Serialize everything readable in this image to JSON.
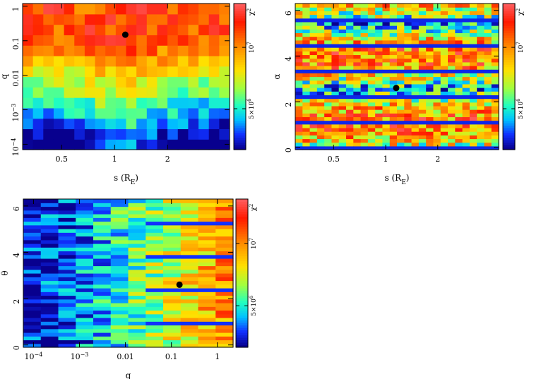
{
  "chart_data": [
    {
      "type": "heatmap",
      "xlabel": "s (R",
      "xlabel_sub": "E",
      "xlabel_close": ")",
      "ylabel": "q",
      "x_scale": "log",
      "y_scale": "log",
      "xlim": [
        0.3,
        4.5
      ],
      "ylim": [
        7e-05,
        1.2
      ],
      "x_ticks": [
        {
          "v": 0.5,
          "label": "0.5"
        },
        {
          "v": 1,
          "label": "1"
        },
        {
          "v": 2,
          "label": "2"
        }
      ],
      "y_ticks": [
        {
          "v": 0.0001,
          "label": "10",
          "sup": "−4"
        },
        {
          "v": 0.001,
          "label": "10",
          "sup": "−3"
        },
        {
          "v": 0.01,
          "label": "0.01"
        },
        {
          "v": 0.1,
          "label": "0.1"
        },
        {
          "v": 1,
          "label": "1"
        }
      ],
      "grid": {
        "cols": 20,
        "rows": 14,
        "pattern": "sq"
      },
      "best_fit": {
        "x": 1.15,
        "y": 0.15
      },
      "colorbar": {
        "label": "χ",
        "label_sup": "2",
        "ticks": [
          {
            "label": "10",
            "sup": "7",
            "frac": 0.3
          },
          {
            "label": "5×10",
            "sup": "6",
            "frac": 0.72
          }
        ]
      }
    },
    {
      "type": "heatmap",
      "xlabel": "s (R",
      "xlabel_sub": "E",
      "xlabel_close": ")",
      "ylabel": "α",
      "x_scale": "log",
      "y_scale": "linear",
      "xlim": [
        0.3,
        4.5
      ],
      "ylim": [
        -0.1,
        6.3
      ],
      "x_ticks": [
        {
          "v": 0.5,
          "label": "0.5"
        },
        {
          "v": 1,
          "label": "1"
        },
        {
          "v": 2,
          "label": "2"
        }
      ],
      "y_ticks": [
        {
          "v": 0,
          "label": "0"
        },
        {
          "v": 2,
          "label": "2"
        },
        {
          "v": 4,
          "label": "4"
        },
        {
          "v": 6,
          "label": "6"
        }
      ],
      "grid": {
        "cols": 28,
        "rows": 40,
        "pattern": "sa"
      },
      "best_fit": {
        "x": 1.15,
        "y": 2.6
      },
      "colorbar": {
        "label": "χ",
        "label_sup": "2",
        "ticks": [
          {
            "label": "10",
            "sup": "7",
            "frac": 0.3
          },
          {
            "label": "5×10",
            "sup": "6",
            "frac": 0.72
          }
        ]
      }
    },
    {
      "type": "heatmap",
      "xlabel": "q",
      "xlabel_sub": "",
      "xlabel_close": "",
      "ylabel": "θ",
      "x_scale": "log",
      "y_scale": "linear",
      "xlim": [
        6e-05,
        2.2
      ],
      "ylim": [
        -0.1,
        6.3
      ],
      "x_ticks": [
        {
          "v": 0.0001,
          "label": "10",
          "sup": "−4"
        },
        {
          "v": 0.001,
          "label": "10",
          "sup": "−3"
        },
        {
          "v": 0.01,
          "label": "0.01"
        },
        {
          "v": 0.1,
          "label": "0.1"
        },
        {
          "v": 1,
          "label": "1"
        }
      ],
      "y_ticks": [
        {
          "v": 0,
          "label": "0"
        },
        {
          "v": 2,
          "label": "2"
        },
        {
          "v": 4,
          "label": "4"
        },
        {
          "v": 6,
          "label": "6"
        }
      ],
      "grid": {
        "cols": 12,
        "rows": 40,
        "pattern": "qt"
      },
      "best_fit": {
        "x": 0.15,
        "y": 2.6
      },
      "colorbar": {
        "label": "χ",
        "label_sup": "2",
        "ticks": [
          {
            "label": "10",
            "sup": "7",
            "frac": 0.3
          },
          {
            "label": "5×10",
            "sup": "6",
            "frac": 0.72
          }
        ]
      }
    }
  ]
}
